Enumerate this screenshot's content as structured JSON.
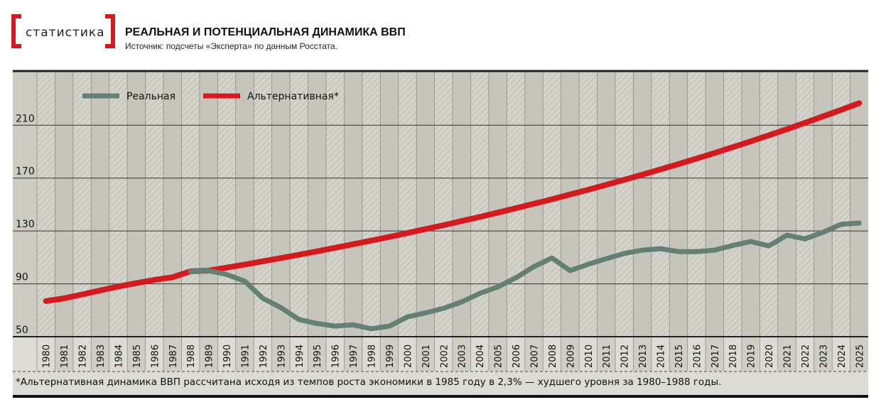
{
  "header": {
    "logo_text": "статистика",
    "title": "РЕАЛЬНАЯ И ПОТЕНЦИАЛЬНАЯ ДИНАМИКА ВВП",
    "source": "Источник: подсчеты «Эксперта» по данным Росстата."
  },
  "footnote": "*Альтернативная динамика ВВП рассчитана исходя из темпов роста экономики в 1985 году в 2,3% — худшего уровня за 1980–1988 годы.",
  "chart_data": {
    "type": "line",
    "title": "РЕАЛЬНАЯ И ПОТЕНЦИАЛЬНАЯ ДИНАМИКА ВВП",
    "xlabel": "",
    "ylabel": "",
    "ylim": [
      50,
      251
    ],
    "yticks": [
      50,
      90,
      130,
      170,
      210
    ],
    "grid": true,
    "legend": "top-left",
    "x": [
      1980,
      1981,
      1982,
      1983,
      1984,
      1985,
      1986,
      1987,
      1988,
      1989,
      1990,
      1991,
      1992,
      1993,
      1994,
      1995,
      1996,
      1997,
      1998,
      1999,
      2000,
      2001,
      2002,
      2003,
      2004,
      2005,
      2006,
      2007,
      2008,
      2009,
      2010,
      2011,
      2012,
      2013,
      2014,
      2015,
      2016,
      2017,
      2018,
      2019,
      2020,
      2021,
      2022,
      2023,
      2024,
      2025
    ],
    "series": [
      {
        "name": "Реальная",
        "color": "#647f74",
        "values": [
          null,
          null,
          null,
          null,
          null,
          null,
          null,
          null,
          99.5,
          100,
          97,
          92,
          79,
          72,
          63,
          60,
          58,
          59,
          56,
          58,
          65,
          68,
          71.5,
          76.3,
          82.8,
          87.6,
          94.6,
          103,
          109.6,
          100,
          104.8,
          109,
          113,
          115.5,
          116.6,
          114.4,
          114.4,
          115.5,
          119,
          122,
          118.7,
          126.8,
          124,
          129,
          135,
          136
        ]
      },
      {
        "name": "Альтернативная*",
        "color": "#d51a1f",
        "values": [
          77,
          79,
          82,
          85,
          88,
          90.5,
          93,
          95,
          99.5,
          100,
          102.3,
          104.6,
          107.1,
          109.5,
          112,
          114.6,
          117.3,
          120,
          122.7,
          125.5,
          128.4,
          131.4,
          134.4,
          137.5,
          140.6,
          143.9,
          147.2,
          150.6,
          154,
          157.6,
          161.2,
          164.9,
          168.7,
          172.6,
          176.6,
          180.6,
          184.8,
          189,
          193.4,
          197.8,
          202.4,
          207,
          211.8,
          216.7,
          221.6,
          226.7
        ]
      }
    ]
  }
}
